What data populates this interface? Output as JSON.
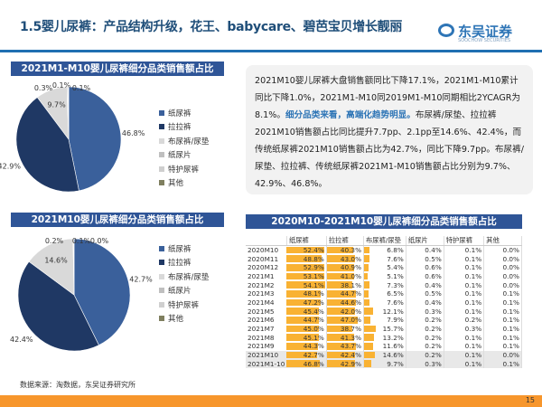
{
  "header": {
    "title": "1.5婴儿尿裤：产品结构升级，花王、babycare、碧芭宝贝增长靓丽",
    "logo_name": "东吴证券",
    "logo_sub": "SOOCHOW SECURITIES"
  },
  "textbox": {
    "p1": "2021M10婴儿尿裤大盘销售额同比下降17.1%，2021M1-M10累计同比下降1.0%，2021M1-M10同2019M1-M10同期相比2YCAGR为8.1%。",
    "highlight": "细分品类来看，高端化趋势明显。",
    "p2": "布尿裤/尿垫、拉拉裤2021M10销售额占比同比提升7.7pp、2.1pp至14.6%、42.4%，而传统纸尿裤2021M10销售额占比为42.7%，同比下降9.7pp。布尿裤/尿垫、拉拉裤、传统纸尿裤2021M1-M10销售额占比分别为9.7%、42.9%、46.8%。"
  },
  "colors": {
    "纸尿裤": "#3a609b",
    "拉拉裤": "#1f3864",
    "布尿裤/尿垫": "#d9d9d9",
    "纸尿片": "#bfbfbf",
    "特护尿裤": "#cfcfcf",
    "其他": "#7f7f5f",
    "table_bar": "#f9b233",
    "header_bg": "#2f5597",
    "footer": "#f7962c"
  },
  "chart_data": [
    {
      "type": "pie",
      "title": "2021M1-M10婴儿尿裤细分品类销售额占比",
      "categories": [
        "纸尿裤",
        "拉拉裤",
        "布尿裤/尿垫",
        "纸尿片",
        "特护尿裤",
        "其他"
      ],
      "values": [
        46.8,
        42.9,
        9.7,
        0.3,
        0.1,
        0.1
      ],
      "labels": [
        "46.8%",
        "42.9%",
        "9.7%",
        "0.3%",
        "0.1%",
        "0.1%"
      ],
      "legend": "right"
    },
    {
      "type": "pie",
      "title": "2021M10婴儿尿裤细分品类销售额占比",
      "categories": [
        "纸尿裤",
        "拉拉裤",
        "布尿裤/尿垫",
        "纸尿片",
        "特护尿裤",
        "其他"
      ],
      "values": [
        42.7,
        42.4,
        14.6,
        0.2,
        0.1,
        0.0
      ],
      "labels": [
        "42.7%",
        "42.4%",
        "14.6%",
        "0.2%",
        "0.1%",
        "0.0%"
      ],
      "legend": "right"
    },
    {
      "type": "table",
      "title": "2020M10-2021M10婴儿尿裤细分品类销售额占比",
      "columns": [
        "",
        "纸尿裤",
        "拉拉裤",
        "布尿裤/尿垫",
        "纸尿片",
        "特护尿裤",
        "其他"
      ],
      "rows": [
        [
          "2020M10",
          "52.4%",
          "40.3%",
          "6.8%",
          "0.4%",
          "0.1%",
          "0.0%"
        ],
        [
          "2020M11",
          "48.8%",
          "43.0%",
          "7.6%",
          "0.5%",
          "0.1%",
          "0.0%"
        ],
        [
          "2020M12",
          "52.9%",
          "40.9%",
          "5.4%",
          "0.6%",
          "0.1%",
          "0.0%"
        ],
        [
          "2021M1",
          "53.1%",
          "41.0%",
          "5.1%",
          "0.6%",
          "0.1%",
          "0.0%"
        ],
        [
          "2021M2",
          "54.1%",
          "38.1%",
          "7.3%",
          "0.4%",
          "0.1%",
          "0.0%"
        ],
        [
          "2021M3",
          "48.1%",
          "44.7%",
          "6.5%",
          "0.5%",
          "0.1%",
          "0.1%"
        ],
        [
          "2021M4",
          "47.2%",
          "44.6%",
          "7.6%",
          "0.4%",
          "0.1%",
          "0.1%"
        ],
        [
          "2021M5",
          "45.4%",
          "42.0%",
          "12.1%",
          "0.3%",
          "0.1%",
          "0.1%"
        ],
        [
          "2021M6",
          "44.7%",
          "47.0%",
          "7.9%",
          "0.2%",
          "0.2%",
          "0.1%"
        ],
        [
          "2021M7",
          "45.0%",
          "38.7%",
          "15.7%",
          "0.2%",
          "0.3%",
          "0.1%"
        ],
        [
          "2021M8",
          "45.1%",
          "41.3%",
          "13.2%",
          "0.2%",
          "0.1%",
          "0.1%"
        ],
        [
          "2021M9",
          "44.3%",
          "43.7%",
          "11.6%",
          "0.2%",
          "0.1%",
          "0.1%"
        ],
        [
          "2021M10",
          "42.7%",
          "42.4%",
          "14.6%",
          "0.2%",
          "0.1%",
          "0.0%"
        ],
        [
          "2021M1-10",
          "46.8%",
          "42.9%",
          "9.7%",
          "0.3%",
          "0.1%",
          "0.1%"
        ]
      ],
      "bar_columns": [
        1,
        2,
        3
      ],
      "highlight_rows": [
        12,
        13
      ]
    }
  ],
  "source": "数据来源：淘数据，东吴证券研究所",
  "page": "15"
}
